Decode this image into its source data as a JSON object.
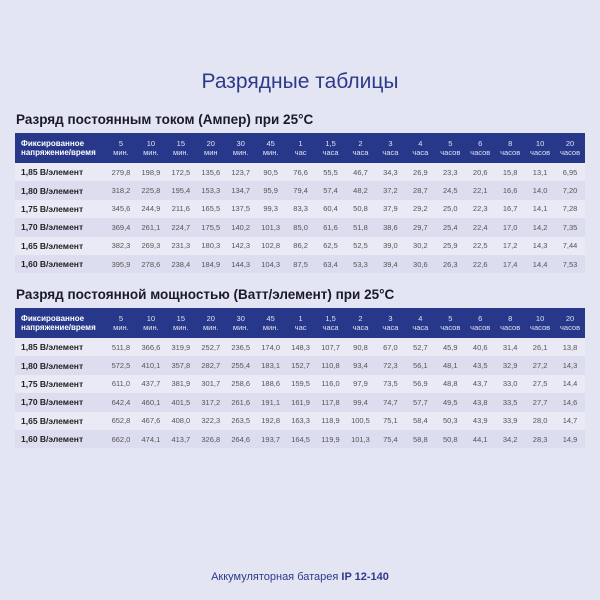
{
  "title": "Разрядные таблицы",
  "header_label_line1": "Фиксированное",
  "header_label_line2": "напряжение/время",
  "colors": {
    "header_bg": "#27378a",
    "accent": "#2d3a8c",
    "background": "#e3e5f2"
  },
  "tables": [
    {
      "title": "Разряд постоянным током (Ампер) при 25°C",
      "columns": [
        [
          "5",
          "мин."
        ],
        [
          "10",
          "мин."
        ],
        [
          "15",
          "мин."
        ],
        [
          "20",
          "мин"
        ],
        [
          "30",
          "мин."
        ],
        [
          "45",
          "мин."
        ],
        [
          "1",
          "час"
        ],
        [
          "1,5",
          "часа"
        ],
        [
          "2",
          "часа"
        ],
        [
          "3",
          "часа"
        ],
        [
          "4",
          "часа"
        ],
        [
          "5",
          "часов"
        ],
        [
          "6",
          "часов"
        ],
        [
          "8",
          "часов"
        ],
        [
          "10",
          "часов"
        ],
        [
          "20",
          "часов"
        ]
      ],
      "rows": [
        {
          "label": "1,85 В/элемент",
          "values": [
            "279,8",
            "198,9",
            "172,5",
            "135,6",
            "123,7",
            "90,5",
            "76,6",
            "55,5",
            "46,7",
            "34,3",
            "26,9",
            "23,3",
            "20,6",
            "15,8",
            "13,1",
            "6,95"
          ]
        },
        {
          "label": "1,80 В/элемент",
          "values": [
            "318,2",
            "225,8",
            "195,4",
            "153,3",
            "134,7",
            "95,9",
            "79,4",
            "57,4",
            "48,2",
            "37,2",
            "28,7",
            "24,5",
            "22,1",
            "16,6",
            "14,0",
            "7,20"
          ]
        },
        {
          "label": "1,75 В/элемент",
          "values": [
            "345,6",
            "244,9",
            "211,6",
            "165,5",
            "137,5",
            "99,3",
            "83,3",
            "60,4",
            "50,8",
            "37,9",
            "29,2",
            "25,0",
            "22,3",
            "16,7",
            "14,1",
            "7,28"
          ]
        },
        {
          "label": "1,70 В/элемент",
          "values": [
            "369,4",
            "261,1",
            "224,7",
            "175,5",
            "140,2",
            "101,3",
            "85,0",
            "61,6",
            "51,8",
            "38,6",
            "29,7",
            "25,4",
            "22,4",
            "17,0",
            "14,2",
            "7,35"
          ]
        },
        {
          "label": "1,65 В/элемент",
          "values": [
            "382,3",
            "269,3",
            "231,3",
            "180,3",
            "142,3",
            "102,8",
            "86,2",
            "62,5",
            "52,5",
            "39,0",
            "30,2",
            "25,9",
            "22,5",
            "17,2",
            "14,3",
            "7,44"
          ]
        },
        {
          "label": "1,60 В/элемент",
          "values": [
            "395,9",
            "278,6",
            "238,4",
            "184,9",
            "144,3",
            "104,3",
            "87,5",
            "63,4",
            "53,3",
            "39,4",
            "30,6",
            "26,3",
            "22,6",
            "17,4",
            "14,4",
            "7,53"
          ]
        }
      ]
    },
    {
      "title": "Разряд постоянной мощностью (Ватт/элемент) при 25°C",
      "columns": [
        [
          "5",
          "мин."
        ],
        [
          "10",
          "мин."
        ],
        [
          "15",
          "мин."
        ],
        [
          "20",
          "мин."
        ],
        [
          "30",
          "мин."
        ],
        [
          "45",
          "мин."
        ],
        [
          "1",
          "час"
        ],
        [
          "1,5",
          "часа"
        ],
        [
          "2",
          "часа"
        ],
        [
          "3",
          "часа"
        ],
        [
          "4",
          "часа"
        ],
        [
          "5",
          "часов"
        ],
        [
          "6",
          "часов"
        ],
        [
          "8",
          "часов"
        ],
        [
          "10",
          "часов"
        ],
        [
          "20",
          "часов"
        ]
      ],
      "rows": [
        {
          "label": "1,85 В/элемент",
          "values": [
            "511,8",
            "366,6",
            "319,9",
            "252,7",
            "236,5",
            "174,0",
            "148,3",
            "107,7",
            "90,8",
            "67,0",
            "52,7",
            "45,9",
            "40,6",
            "31,4",
            "26,1",
            "13,8"
          ]
        },
        {
          "label": "1,80 В/элемент",
          "values": [
            "572,5",
            "410,1",
            "357,8",
            "282,7",
            "255,4",
            "183,1",
            "152,7",
            "110,8",
            "93,4",
            "72,3",
            "56,1",
            "48,1",
            "43,5",
            "32,9",
            "27,2",
            "14,3"
          ]
        },
        {
          "label": "1,75 В/элемент",
          "values": [
            "611,0",
            "437,7",
            "381,9",
            "301,7",
            "258,6",
            "188,6",
            "159,5",
            "116,0",
            "97,9",
            "73,5",
            "56,9",
            "48,8",
            "43,7",
            "33,0",
            "27,5",
            "14,4"
          ]
        },
        {
          "label": "1,70 В/элемент",
          "values": [
            "642,4",
            "460,1",
            "401,5",
            "317,2",
            "261,6",
            "191,1",
            "161,9",
            "117,8",
            "99,4",
            "74,7",
            "57,7",
            "49,5",
            "43,8",
            "33,5",
            "27,7",
            "14,6"
          ]
        },
        {
          "label": "1,65 В/элемент",
          "values": [
            "652,8",
            "467,6",
            "408,0",
            "322,3",
            "263,5",
            "192,8",
            "163,3",
            "118,9",
            "100,5",
            "75,1",
            "58,4",
            "50,3",
            "43,9",
            "33,9",
            "28,0",
            "14,7"
          ]
        },
        {
          "label": "1,60 В/элемент",
          "values": [
            "662,0",
            "474,1",
            "413,7",
            "326,8",
            "264,6",
            "193,7",
            "164,5",
            "119,9",
            "101,3",
            "75,4",
            "58,8",
            "50,8",
            "44,1",
            "34,2",
            "28,3",
            "14,9"
          ]
        }
      ]
    }
  ],
  "footer": {
    "text": "Аккумуляторная батарея ",
    "model": "IP 12-140"
  }
}
